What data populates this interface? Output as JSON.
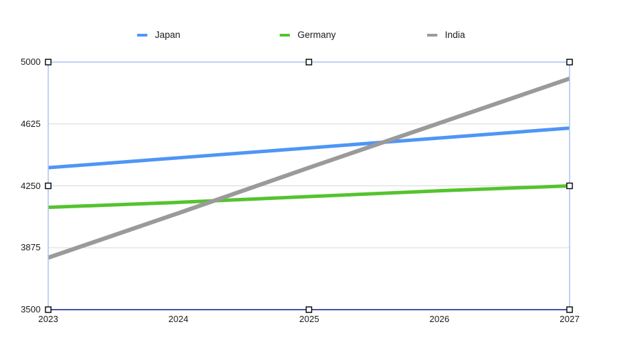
{
  "legend": {
    "items": [
      {
        "label": "Japan",
        "color": "#4E96F5"
      },
      {
        "label": "Germany",
        "color": "#55C32F"
      },
      {
        "label": "India",
        "color": "#9A9A9A"
      }
    ]
  },
  "chart_data": {
    "type": "line",
    "x": [
      2023,
      2024,
      2025,
      2026,
      2027
    ],
    "xticklabels": [
      "2023",
      "2024",
      "2025",
      "2026",
      "2027"
    ],
    "yticklabels": [
      "3500",
      "3875",
      "4250",
      "4625",
      "5000"
    ],
    "ylim": [
      3500,
      5000
    ],
    "ytick_step": 375,
    "grid": true,
    "legend_position": "top",
    "title": "",
    "series": [
      {
        "name": "Japan",
        "color": "#4E96F5",
        "width": 5,
        "values": [
          4360,
          4420,
          4480,
          4540,
          4600
        ]
      },
      {
        "name": "Germany",
        "color": "#55C32F",
        "width": 5,
        "values": [
          4120,
          4150,
          4185,
          4220,
          4250
        ]
      },
      {
        "name": "India",
        "color": "#9A9A9A",
        "width": 6,
        "values": [
          3815,
          4085,
          4360,
          4630,
          4900
        ]
      }
    ]
  },
  "selection": {
    "selected": true,
    "handle_fill": "#ffffff",
    "handle_border": "#000000",
    "handle_count": 8
  },
  "styles": {
    "plot_border_color": "#AAC4F2",
    "bottom_axis_color": "#2B3C98",
    "gridline_color": "#D8D8D8",
    "background": "#ffffff",
    "text_color": "#1b1b1b"
  }
}
